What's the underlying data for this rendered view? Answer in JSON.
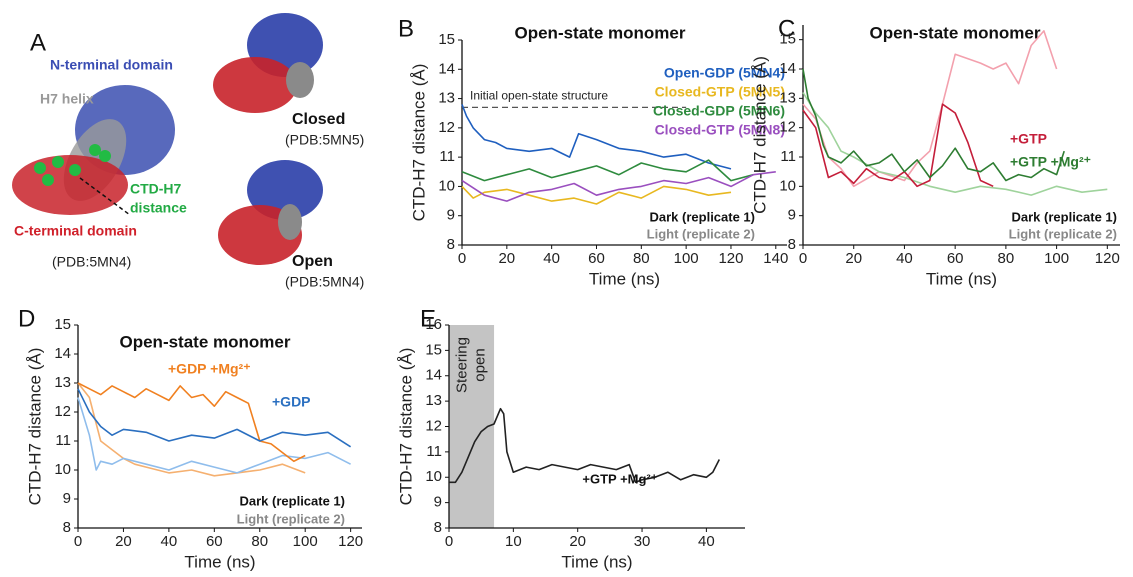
{
  "panel_a": {
    "label": "A",
    "texts": [
      "N-terminal domain",
      "H7 helix",
      "CTD-H7",
      "distance",
      "C-terminal domain",
      "(PDB:5MN4)",
      "Closed",
      "(PDB:5MN5)",
      "Open",
      "(PDB:5MN4)"
    ]
  },
  "chart_data": [
    {
      "type": "line",
      "panel": "B",
      "title": "Open-state monomer",
      "xlabel": "Time (ns)",
      "ylabel": "CTD-H7 distance (Å)",
      "xlim": [
        0,
        145
      ],
      "ylim": [
        8,
        15
      ],
      "xticks": [
        0,
        20,
        40,
        60,
        80,
        100,
        120,
        140
      ],
      "yticks": [
        8,
        9,
        10,
        11,
        12,
        13,
        14,
        15
      ],
      "reference": {
        "value": 12.7,
        "label": "Initial open-state structure"
      },
      "series": [
        {
          "name": "Open-GDP (5MN4)",
          "color": "#1f5fbf",
          "x": [
            0,
            2,
            5,
            10,
            15,
            20,
            30,
            40,
            48,
            52,
            60,
            70,
            80,
            90,
            100,
            110,
            120
          ],
          "values": [
            12.8,
            12.4,
            12.0,
            11.6,
            11.5,
            11.3,
            11.2,
            11.3,
            11.0,
            11.8,
            11.6,
            11.3,
            11.2,
            11.0,
            11.1,
            10.8,
            10.6
          ]
        },
        {
          "name": "Closed-GTP (5MN5)",
          "color": "#e8b820",
          "x": [
            0,
            5,
            10,
            20,
            30,
            40,
            50,
            60,
            70,
            80,
            90,
            100,
            110,
            120
          ],
          "values": [
            10.0,
            9.6,
            9.8,
            9.9,
            9.7,
            9.5,
            9.6,
            9.4,
            9.8,
            9.6,
            10.0,
            9.9,
            9.7,
            9.8
          ]
        },
        {
          "name": "Closed-GDP (5MN6)",
          "color": "#2e8b3e",
          "x": [
            0,
            10,
            20,
            30,
            40,
            50,
            60,
            70,
            80,
            90,
            100,
            110,
            120,
            130
          ],
          "values": [
            10.5,
            10.2,
            10.4,
            10.6,
            10.3,
            10.5,
            10.7,
            10.4,
            10.8,
            10.6,
            10.5,
            10.9,
            10.2,
            10.4
          ]
        },
        {
          "name": "Closed-GTP (5MN8)",
          "color": "#9a4fbf",
          "x": [
            0,
            10,
            20,
            30,
            40,
            50,
            60,
            70,
            80,
            90,
            100,
            110,
            120,
            130,
            140
          ],
          "values": [
            10.2,
            9.7,
            9.5,
            9.8,
            9.9,
            10.1,
            9.7,
            9.9,
            10.0,
            10.2,
            10.1,
            10.3,
            10.0,
            10.4,
            10.5
          ]
        }
      ],
      "annotations": [
        "Dark (replicate 1)",
        "Light (replicate 2)"
      ]
    },
    {
      "type": "line",
      "panel": "C",
      "title": "Open-state monomer",
      "xlabel": "Time (ns)",
      "ylabel": "CTD-H7 distance (Å)",
      "xlim": [
        0,
        125
      ],
      "ylim": [
        8,
        15.5
      ],
      "xticks": [
        0,
        20,
        40,
        60,
        80,
        100,
        120
      ],
      "yticks": [
        8,
        9,
        10,
        11,
        12,
        13,
        14,
        15
      ],
      "series": [
        {
          "color": "#f3a0ad",
          "x": [
            0,
            5,
            10,
            15,
            20,
            30,
            40,
            45,
            50,
            55,
            60,
            70,
            75,
            80,
            85,
            90,
            95,
            100
          ],
          "values": [
            12.8,
            12.3,
            11.0,
            10.6,
            10.0,
            10.5,
            10.2,
            10.8,
            11.2,
            12.8,
            14.5,
            14.2,
            14.0,
            14.2,
            13.5,
            14.8,
            15.3,
            14.0
          ]
        },
        {
          "color": "#9fd39c",
          "x": [
            0,
            5,
            10,
            15,
            20,
            30,
            40,
            50,
            60,
            70,
            80,
            90,
            100,
            110,
            120
          ],
          "values": [
            13.2,
            12.5,
            12.0,
            11.2,
            11.0,
            10.5,
            10.3,
            10.0,
            9.8,
            10.0,
            9.9,
            9.7,
            10.0,
            9.8,
            9.9
          ]
        },
        {
          "name": "+GTP",
          "color": "#c41e3a",
          "x": [
            0,
            5,
            10,
            15,
            20,
            25,
            30,
            35,
            40,
            45,
            50,
            55,
            60,
            65,
            70,
            75
          ],
          "values": [
            12.6,
            12.0,
            10.3,
            10.5,
            10.1,
            10.6,
            10.3,
            10.2,
            10.5,
            10.0,
            10.2,
            12.8,
            12.5,
            11.5,
            10.2,
            10.0
          ]
        },
        {
          "name": "+GTP +Mg²⁺",
          "color": "#2e7d32",
          "x": [
            0,
            2,
            5,
            8,
            10,
            15,
            20,
            25,
            30,
            35,
            40,
            45,
            50,
            55,
            60,
            65,
            70,
            75,
            80,
            85,
            90,
            95,
            100,
            103
          ],
          "values": [
            14.0,
            13.0,
            12.4,
            11.4,
            11.0,
            10.8,
            11.2,
            10.7,
            10.8,
            11.1,
            10.5,
            10.9,
            10.3,
            10.7,
            11.3,
            10.6,
            10.5,
            10.8,
            10.2,
            10.4,
            10.3,
            10.6,
            10.4,
            11.2
          ]
        }
      ],
      "annotations": [
        "Dark (replicate 1)",
        "Light (replicate 2)"
      ]
    },
    {
      "type": "line",
      "panel": "D",
      "title": "Open-state monomer",
      "xlabel": "Time (ns)",
      "ylabel": "CTD-H7 distance (Å)",
      "xlim": [
        0,
        125
      ],
      "ylim": [
        8,
        15
      ],
      "xticks": [
        0,
        20,
        40,
        60,
        80,
        100,
        120
      ],
      "yticks": [
        8,
        9,
        10,
        11,
        12,
        13,
        14,
        15
      ],
      "series": [
        {
          "color": "#f5b070",
          "x": [
            0,
            5,
            10,
            15,
            20,
            25,
            30,
            40,
            50,
            60,
            70,
            80,
            90,
            100
          ],
          "values": [
            13.0,
            12.5,
            11.0,
            10.7,
            10.4,
            10.2,
            10.1,
            9.9,
            10.0,
            9.8,
            9.9,
            10.0,
            10.2,
            9.9
          ]
        },
        {
          "color": "#8fbdec",
          "x": [
            0,
            5,
            8,
            10,
            15,
            20,
            30,
            40,
            50,
            60,
            70,
            80,
            90,
            100,
            110,
            120
          ],
          "values": [
            12.5,
            11.2,
            10.0,
            10.3,
            10.2,
            10.4,
            10.2,
            10.0,
            10.3,
            10.1,
            9.9,
            10.2,
            10.5,
            10.4,
            10.6,
            10.2
          ]
        },
        {
          "name": "+GDP +Mg²⁺",
          "color": "#f08020",
          "x": [
            0,
            5,
            10,
            15,
            20,
            25,
            30,
            35,
            40,
            45,
            50,
            55,
            60,
            65,
            70,
            75,
            80,
            85,
            90,
            95,
            100
          ],
          "values": [
            13.0,
            12.8,
            12.6,
            12.9,
            12.7,
            12.5,
            12.8,
            12.6,
            12.4,
            12.9,
            12.5,
            12.6,
            12.2,
            12.7,
            12.5,
            12.3,
            11.0,
            10.9,
            10.6,
            10.3,
            10.5
          ]
        },
        {
          "name": "+GDP",
          "color": "#2a6fc0",
          "x": [
            0,
            5,
            10,
            15,
            20,
            30,
            40,
            50,
            60,
            70,
            80,
            90,
            100,
            110,
            120
          ],
          "values": [
            12.8,
            12.0,
            11.5,
            11.2,
            11.4,
            11.3,
            11.0,
            11.2,
            11.1,
            11.4,
            11.0,
            11.3,
            11.2,
            11.3,
            10.8
          ]
        }
      ],
      "annotations": [
        "Dark (replicate 1)",
        "Light (replicate 2)"
      ]
    },
    {
      "type": "line",
      "panel": "E",
      "xlabel": "Time (ns)",
      "ylabel": "CTD-H7 distance (Å)",
      "xlim": [
        0,
        46
      ],
      "ylim": [
        8,
        16
      ],
      "xticks": [
        0,
        10,
        20,
        30,
        40
      ],
      "yticks": [
        8,
        9,
        10,
        11,
        12,
        13,
        14,
        15,
        16
      ],
      "shade": {
        "x": [
          0,
          7
        ],
        "label": [
          "Steering",
          "open"
        ]
      },
      "series": [
        {
          "color": "#222222",
          "x": [
            0,
            1,
            2,
            3,
            4,
            5,
            6,
            7,
            8,
            8.5,
            9,
            10,
            12,
            14,
            16,
            18,
            20,
            22,
            24,
            26,
            28,
            29,
            30,
            32,
            34,
            36,
            38,
            40,
            41,
            42
          ],
          "values": [
            9.8,
            9.8,
            10.2,
            10.8,
            11.4,
            11.8,
            12.0,
            12.1,
            12.7,
            12.5,
            11.0,
            10.2,
            10.4,
            10.3,
            10.5,
            10.4,
            10.3,
            10.5,
            10.4,
            10.3,
            10.5,
            9.8,
            9.9,
            10.0,
            10.2,
            9.9,
            10.1,
            10.0,
            10.2,
            10.7
          ]
        }
      ],
      "annotations": [
        "+GTP +Mg²⁺"
      ]
    }
  ]
}
